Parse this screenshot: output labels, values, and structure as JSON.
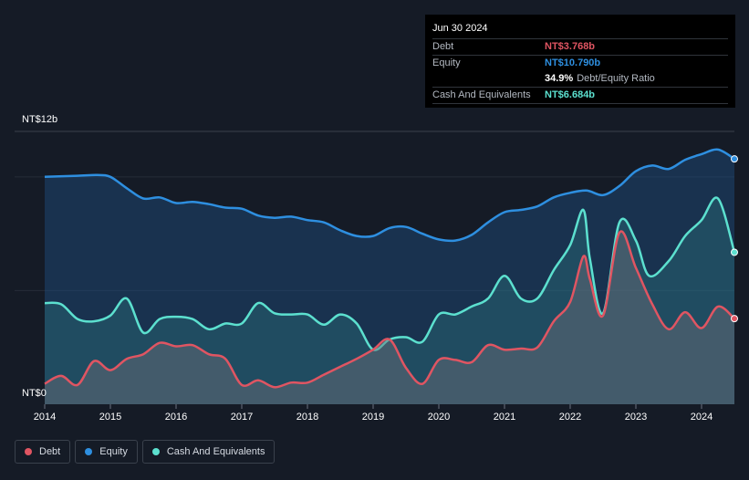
{
  "tooltip": {
    "date": "Jun 30 2024",
    "debt_label": "Debt",
    "debt_value": "NT$3.768b",
    "equity_label": "Equity",
    "equity_value": "NT$10.790b",
    "ratio_value": "34.9%",
    "ratio_label": "Debt/Equity Ratio",
    "cash_label": "Cash And Equivalents",
    "cash_value": "NT$6.684b"
  },
  "colors": {
    "debt": "#e05562",
    "equity": "#2e8fe0",
    "cash": "#5ce0cf",
    "background": "#151b26"
  },
  "legend": {
    "debt": "Debt",
    "equity": "Equity",
    "cash": "Cash And Equivalents"
  },
  "chart_data": {
    "type": "area",
    "ylim": [
      0,
      12
    ],
    "y_tick_labels": [
      "NT$12b",
      "NT$0"
    ],
    "x_tick_labels": [
      "2014",
      "2015",
      "2016",
      "2017",
      "2018",
      "2019",
      "2020",
      "2021",
      "2022",
      "2023",
      "2024"
    ],
    "grid": true,
    "legend_position": "bottom-left",
    "series": [
      {
        "name": "Equity",
        "points": [
          [
            2014.0,
            10.0
          ],
          [
            2014.5,
            10.05
          ],
          [
            2014.8,
            10.08
          ],
          [
            2015.0,
            10.0
          ],
          [
            2015.25,
            9.5
          ],
          [
            2015.5,
            9.05
          ],
          [
            2015.75,
            9.1
          ],
          [
            2016.0,
            8.85
          ],
          [
            2016.25,
            8.9
          ],
          [
            2016.5,
            8.8
          ],
          [
            2016.75,
            8.65
          ],
          [
            2017.0,
            8.6
          ],
          [
            2017.25,
            8.3
          ],
          [
            2017.5,
            8.2
          ],
          [
            2017.75,
            8.25
          ],
          [
            2018.0,
            8.1
          ],
          [
            2018.25,
            8.0
          ],
          [
            2018.5,
            7.65
          ],
          [
            2018.75,
            7.4
          ],
          [
            2019.0,
            7.4
          ],
          [
            2019.25,
            7.75
          ],
          [
            2019.5,
            7.8
          ],
          [
            2019.75,
            7.5
          ],
          [
            2020.0,
            7.25
          ],
          [
            2020.25,
            7.2
          ],
          [
            2020.5,
            7.45
          ],
          [
            2020.75,
            8.0
          ],
          [
            2021.0,
            8.45
          ],
          [
            2021.25,
            8.55
          ],
          [
            2021.5,
            8.7
          ],
          [
            2021.75,
            9.1
          ],
          [
            2022.0,
            9.3
          ],
          [
            2022.25,
            9.4
          ],
          [
            2022.5,
            9.2
          ],
          [
            2022.75,
            9.6
          ],
          [
            2023.0,
            10.25
          ],
          [
            2023.25,
            10.5
          ],
          [
            2023.5,
            10.35
          ],
          [
            2023.75,
            10.75
          ],
          [
            2024.0,
            11.0
          ],
          [
            2024.25,
            11.2
          ],
          [
            2024.5,
            10.79
          ]
        ]
      },
      {
        "name": "Cash And Equivalents",
        "points": [
          [
            2014.0,
            4.45
          ],
          [
            2014.25,
            4.4
          ],
          [
            2014.5,
            3.75
          ],
          [
            2014.75,
            3.65
          ],
          [
            2015.0,
            3.9
          ],
          [
            2015.25,
            4.65
          ],
          [
            2015.5,
            3.15
          ],
          [
            2015.75,
            3.75
          ],
          [
            2016.0,
            3.85
          ],
          [
            2016.25,
            3.75
          ],
          [
            2016.5,
            3.3
          ],
          [
            2016.75,
            3.55
          ],
          [
            2017.0,
            3.55
          ],
          [
            2017.25,
            4.45
          ],
          [
            2017.5,
            4.0
          ],
          [
            2017.75,
            3.95
          ],
          [
            2018.0,
            3.95
          ],
          [
            2018.25,
            3.5
          ],
          [
            2018.5,
            3.95
          ],
          [
            2018.75,
            3.55
          ],
          [
            2019.0,
            2.4
          ],
          [
            2019.25,
            2.85
          ],
          [
            2019.5,
            2.95
          ],
          [
            2019.75,
            2.75
          ],
          [
            2020.0,
            3.95
          ],
          [
            2020.25,
            3.95
          ],
          [
            2020.5,
            4.3
          ],
          [
            2020.75,
            4.65
          ],
          [
            2021.0,
            5.65
          ],
          [
            2021.25,
            4.65
          ],
          [
            2021.5,
            4.65
          ],
          [
            2021.75,
            5.9
          ],
          [
            2022.0,
            7.0
          ],
          [
            2022.2,
            8.55
          ],
          [
            2022.3,
            6.4
          ],
          [
            2022.5,
            4.0
          ],
          [
            2022.75,
            8.0
          ],
          [
            2023.0,
            7.2
          ],
          [
            2023.2,
            5.65
          ],
          [
            2023.5,
            6.3
          ],
          [
            2023.75,
            7.4
          ],
          [
            2024.0,
            8.1
          ],
          [
            2024.25,
            9.05
          ],
          [
            2024.5,
            6.684
          ]
        ]
      },
      {
        "name": "Debt",
        "points": [
          [
            2014.0,
            0.9
          ],
          [
            2014.25,
            1.25
          ],
          [
            2014.5,
            0.85
          ],
          [
            2014.75,
            1.9
          ],
          [
            2015.0,
            1.5
          ],
          [
            2015.25,
            2.0
          ],
          [
            2015.5,
            2.2
          ],
          [
            2015.75,
            2.7
          ],
          [
            2016.0,
            2.55
          ],
          [
            2016.25,
            2.6
          ],
          [
            2016.5,
            2.2
          ],
          [
            2016.75,
            2.0
          ],
          [
            2017.0,
            0.85
          ],
          [
            2017.25,
            1.05
          ],
          [
            2017.5,
            0.75
          ],
          [
            2017.75,
            0.95
          ],
          [
            2018.0,
            0.95
          ],
          [
            2018.25,
            1.3
          ],
          [
            2018.5,
            1.65
          ],
          [
            2018.75,
            2.0
          ],
          [
            2019.0,
            2.4
          ],
          [
            2019.25,
            2.85
          ],
          [
            2019.5,
            1.6
          ],
          [
            2019.75,
            0.9
          ],
          [
            2020.0,
            1.95
          ],
          [
            2020.25,
            1.95
          ],
          [
            2020.5,
            1.85
          ],
          [
            2020.75,
            2.6
          ],
          [
            2021.0,
            2.4
          ],
          [
            2021.25,
            2.45
          ],
          [
            2021.5,
            2.5
          ],
          [
            2021.75,
            3.65
          ],
          [
            2022.0,
            4.5
          ],
          [
            2022.2,
            6.5
          ],
          [
            2022.3,
            5.5
          ],
          [
            2022.5,
            3.9
          ],
          [
            2022.75,
            7.55
          ],
          [
            2023.0,
            6.0
          ],
          [
            2023.25,
            4.4
          ],
          [
            2023.5,
            3.3
          ],
          [
            2023.75,
            4.05
          ],
          [
            2024.0,
            3.35
          ],
          [
            2024.25,
            4.3
          ],
          [
            2024.5,
            3.768
          ]
        ]
      }
    ]
  }
}
